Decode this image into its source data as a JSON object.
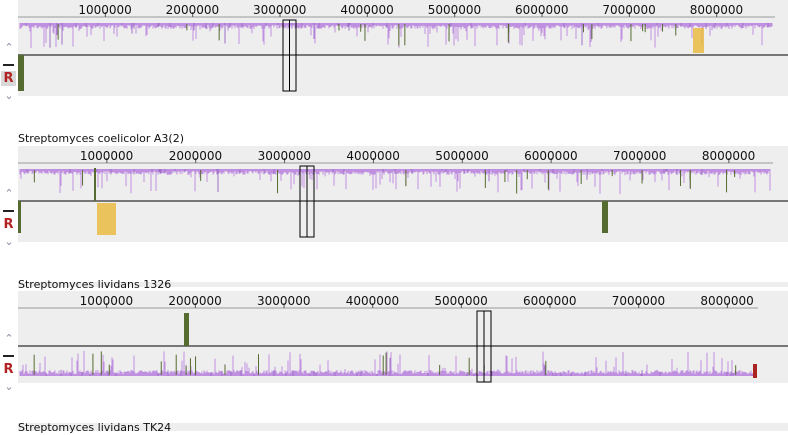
{
  "colors": {
    "panel_bg": "#eeeeee",
    "lcb_purple": "#c090e0",
    "lcb_purple_dark": "#a070c8",
    "lcb_olive": "#556b2f",
    "lcb_yellow": "#e8b838",
    "lcb_red": "#aa2222",
    "axis": "#000000",
    "selection_box": "#000000"
  },
  "controls": {
    "up_icon": "chevron-up-icon",
    "down_icon": "chevron-down-icon",
    "minus_icon": "minus-icon",
    "reverse_label": "R"
  },
  "panels": [
    {
      "genome_name": "Streptomyces coelicolor A3(2)",
      "ticks": [
        "1000000",
        "2000000",
        "3000000",
        "4000000",
        "5000000",
        "6000000",
        "7000000",
        "8000000"
      ],
      "tick_values": [
        1000000,
        2000000,
        3000000,
        4000000,
        5000000,
        6000000,
        7000000,
        8000000
      ],
      "genome_length": 8667507,
      "reverse_selected": true
    },
    {
      "genome_name": "Streptomyces lividans 1326",
      "ticks": [
        "1000000",
        "2000000",
        "3000000",
        "4000000",
        "5000000",
        "6000000",
        "7000000",
        "8000000"
      ],
      "tick_values": [
        1000000,
        2000000,
        3000000,
        4000000,
        5000000,
        6000000,
        7000000,
        8000000
      ],
      "genome_length": 8496762,
      "reverse_selected": false
    },
    {
      "genome_name": "Streptomyces lividans TK24",
      "ticks": [
        "1000000",
        "2000000",
        "3000000",
        "4000000",
        "5000000",
        "6000000",
        "7000000",
        "8000000"
      ],
      "tick_values": [
        1000000,
        2000000,
        3000000,
        4000000,
        5000000,
        6000000,
        7000000,
        8000000
      ],
      "genome_length": 8345283,
      "reverse_selected": false
    }
  ]
}
